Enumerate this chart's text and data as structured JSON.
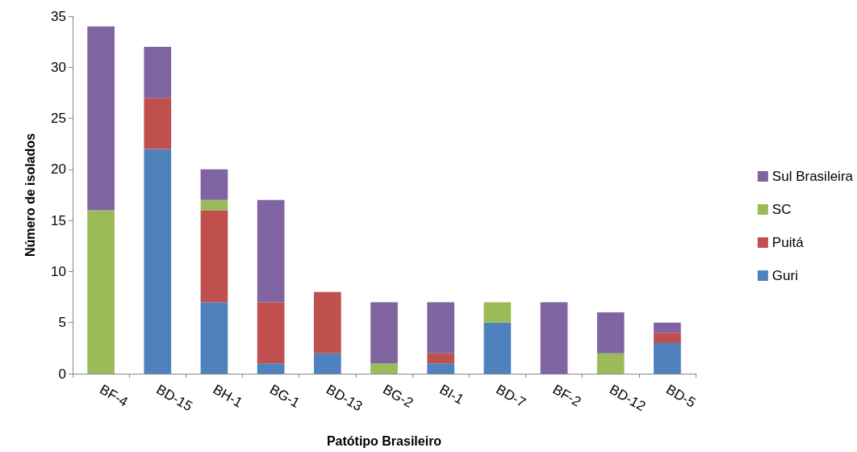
{
  "chart_data": {
    "type": "bar",
    "stacked": true,
    "xlabel": "Patótipo Brasileiro",
    "ylabel": "Número de isolados",
    "categories": [
      "BF-4",
      "BD-15",
      "BH-1",
      "BG-1",
      "BD-13",
      "BG-2",
      "BI-1",
      "BD-7",
      "BF-2",
      "BD-12",
      "BD-5"
    ],
    "series": [
      {
        "name": "Guri",
        "color": "#4f81bd",
        "values": [
          0,
          22,
          7,
          1,
          2,
          0,
          1,
          5,
          0,
          0,
          3
        ]
      },
      {
        "name": "Puitá",
        "color": "#c0504d",
        "values": [
          0,
          5,
          9,
          6,
          6,
          0,
          1,
          0,
          0,
          0,
          1
        ]
      },
      {
        "name": "SC",
        "color": "#9bbb59",
        "values": [
          16,
          0,
          1,
          0,
          0,
          1,
          0,
          2,
          0,
          2,
          0
        ]
      },
      {
        "name": "Sul Brasileira",
        "color": "#8064a2",
        "values": [
          18,
          5,
          3,
          10,
          0,
          6,
          5,
          0,
          7,
          4,
          1
        ]
      }
    ],
    "ylim": [
      0,
      35
    ],
    "yticks": [
      0,
      5,
      10,
      15,
      20,
      25,
      30,
      35
    ],
    "grid": false,
    "legend": "right"
  }
}
